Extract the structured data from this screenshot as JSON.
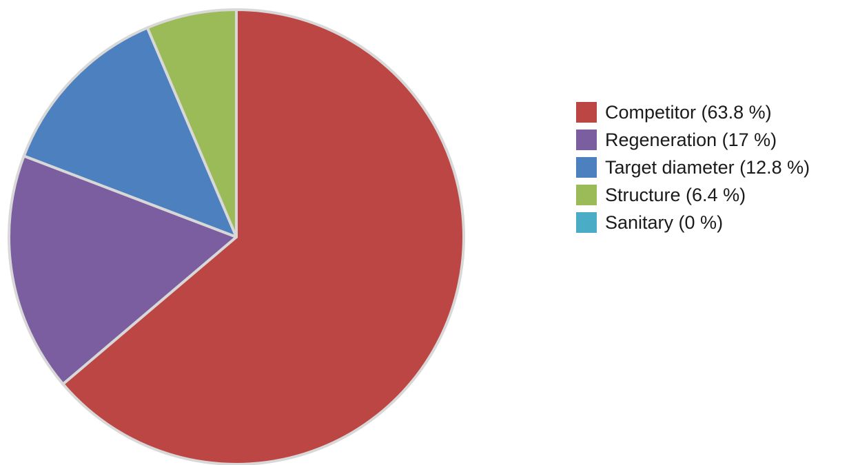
{
  "chart_data": {
    "type": "pie",
    "slices": [
      {
        "label": "Competitor",
        "value": 63.8,
        "color": "#BC4643",
        "legend": "Competitor (63.8 %)"
      },
      {
        "label": "Regeneration",
        "value": 17,
        "color": "#7B5E9F",
        "legend": "Regeneration (17 %)"
      },
      {
        "label": "Target diameter",
        "value": 12.8,
        "color": "#4D80BE",
        "legend": "Target diameter (12.8 %)"
      },
      {
        "label": "Structure",
        "value": 6.4,
        "color": "#9BBB59",
        "legend": "Structure (6.4 %)"
      },
      {
        "label": "Sanitary",
        "value": 0,
        "color": "#4BACC6",
        "legend": "Sanitary (0 %)"
      }
    ],
    "start_angle": "12 o'clock",
    "direction": "clockwise",
    "legend_position": "right",
    "separator_color": "#D8D8D8"
  }
}
